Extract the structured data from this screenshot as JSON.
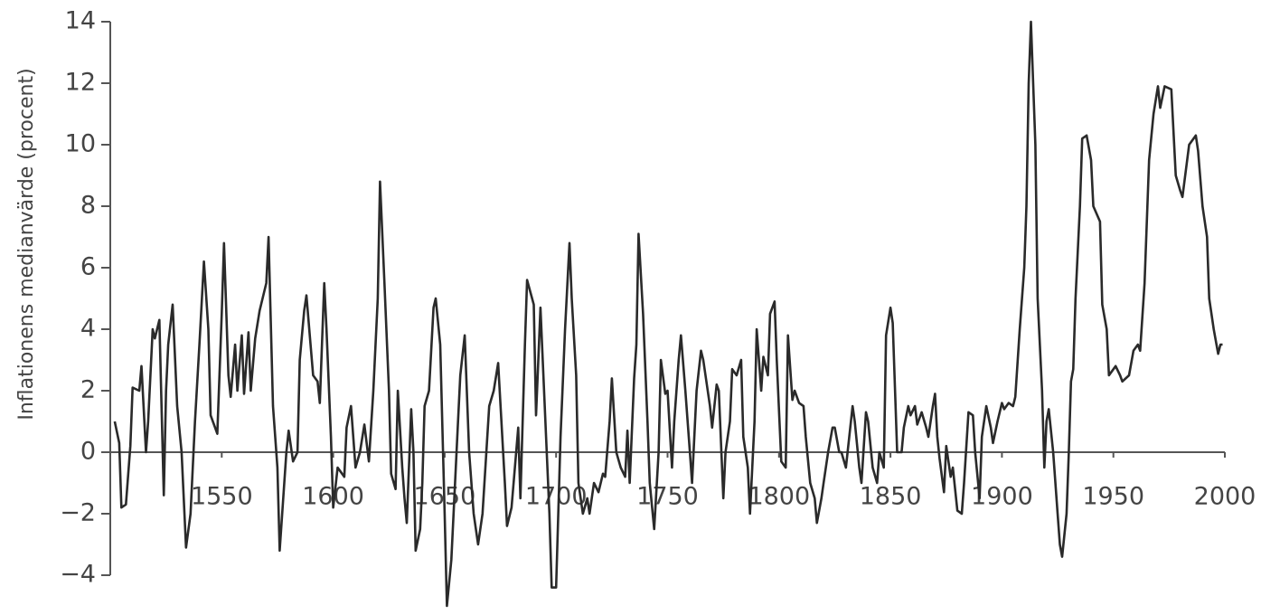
{
  "chart_data": {
    "type": "line",
    "ylabel": "Inflationens medianvärde (procent)",
    "xlim": [
      1500,
      2000
    ],
    "ylim": [
      -5,
      14
    ],
    "xticks": [
      1550,
      1600,
      1650,
      1700,
      1750,
      1800,
      1850,
      1900,
      1950,
      2000
    ],
    "yticks": [
      {
        "value": -4,
        "label": "−4"
      },
      {
        "value": -2,
        "label": "−2"
      },
      0,
      2,
      4,
      6,
      8,
      10,
      12,
      14
    ],
    "color": "#2a2a2a",
    "x": [
      1502,
      1504,
      1505,
      1507,
      1509,
      1510,
      1513,
      1514,
      1516,
      1517,
      1519,
      1520,
      1522,
      1524,
      1525,
      1526,
      1528,
      1530,
      1532,
      1534,
      1536,
      1538,
      1540,
      1542,
      1544,
      1545,
      1548,
      1550,
      1551,
      1553,
      1554,
      1556,
      1557,
      1559,
      1560,
      1562,
      1563,
      1565,
      1567,
      1570,
      1571,
      1573,
      1575,
      1576,
      1579,
      1580,
      1582,
      1584,
      1585,
      1587,
      1588,
      1591,
      1593,
      1594,
      1596,
      1597,
      1599,
      1600,
      1602,
      1605,
      1606,
      1608,
      1610,
      1612,
      1614,
      1616,
      1618,
      1620,
      1621,
      1623,
      1625,
      1626,
      1628,
      1629,
      1631,
      1632,
      1633,
      1635,
      1636,
      1637,
      1639,
      1640,
      1641,
      1643,
      1645,
      1646,
      1648,
      1650,
      1651,
      1653,
      1656,
      1657,
      1659,
      1661,
      1663,
      1665,
      1667,
      1670,
      1672,
      1674,
      1677,
      1678,
      1680,
      1683,
      1684,
      1686,
      1687,
      1690,
      1691,
      1693,
      1694,
      1697,
      1698,
      1700,
      1702,
      1704,
      1706,
      1707,
      1709,
      1710,
      1712,
      1714,
      1715,
      1717,
      1719,
      1721,
      1722,
      1724,
      1725,
      1727,
      1729,
      1731,
      1732,
      1733,
      1735,
      1736,
      1737,
      1739,
      1741,
      1742,
      1744,
      1746,
      1747,
      1749,
      1750,
      1752,
      1753,
      1755,
      1756,
      1758,
      1760,
      1761,
      1763,
      1765,
      1766,
      1769,
      1770,
      1772,
      1773,
      1775,
      1776,
      1778,
      1779,
      1781,
      1783,
      1784,
      1786,
      1787,
      1789,
      1790,
      1792,
      1793,
      1795,
      1796,
      1798,
      1799,
      1801,
      1803,
      1804,
      1806,
      1807,
      1809,
      1811,
      1812,
      1814,
      1816,
      1817,
      1819,
      1820,
      1822,
      1824,
      1825,
      1827,
      1828,
      1830,
      1833,
      1834,
      1836,
      1837,
      1839,
      1840,
      1842,
      1844,
      1845,
      1847,
      1848,
      1850,
      1851,
      1853,
      1855,
      1856,
      1858,
      1859,
      1861,
      1862,
      1864,
      1866,
      1867,
      1869,
      1870,
      1871,
      1872,
      1874,
      1875,
      1877,
      1878,
      1880,
      1882,
      1883,
      1885,
      1887,
      1888,
      1890,
      1891,
      1893,
      1895,
      1896,
      1898,
      1900,
      1901,
      1903,
      1905,
      1906,
      1908,
      1910,
      1911,
      1912,
      1913,
      1915,
      1916,
      1918,
      1919,
      1920,
      1921,
      1923,
      1925,
      1926,
      1927,
      1929,
      1930,
      1931,
      1932,
      1933,
      1935,
      1936,
      1938,
      1940,
      1941,
      1944,
      1945,
      1947,
      1948,
      1951,
      1953,
      1954,
      1957,
      1959,
      1961,
      1962,
      1964,
      1966,
      1968,
      1970,
      1971,
      1973,
      1976,
      1978,
      1980,
      1981,
      1984,
      1987,
      1988,
      1990,
      1992,
      1993,
      1995,
      1997,
      1998,
      1999
    ],
    "values": [
      1.0,
      0.3,
      -1.8,
      -1.7,
      0.2,
      2.1,
      2.0,
      2.8,
      0.0,
      1.0,
      4.0,
      3.7,
      4.3,
      -1.4,
      2.0,
      3.5,
      4.8,
      1.5,
      0.0,
      -3.1,
      -2.0,
      1.0,
      3.5,
      6.2,
      4.0,
      1.2,
      0.6,
      4.5,
      6.8,
      2.5,
      1.8,
      3.5,
      2.0,
      3.8,
      1.9,
      3.9,
      2.0,
      3.7,
      4.6,
      5.5,
      7.0,
      1.5,
      -0.5,
      -3.2,
      0.0,
      0.7,
      -0.3,
      0.0,
      3.0,
      4.6,
      5.1,
      2.5,
      2.3,
      1.6,
      5.5,
      4.0,
      0.5,
      -1.8,
      -0.5,
      -0.8,
      0.8,
      1.5,
      -0.5,
      0.0,
      0.9,
      -0.3,
      2.0,
      5.0,
      8.8,
      5.5,
      2.0,
      -0.7,
      -1.2,
      2.0,
      -0.5,
      -1.5,
      -2.3,
      1.4,
      0.0,
      -3.2,
      -2.5,
      -1.0,
      1.5,
      2.0,
      4.7,
      5.0,
      3.5,
      -2.0,
      -5.0,
      -3.5,
      1.0,
      2.5,
      3.8,
      0.0,
      -2.0,
      -3.0,
      -2.0,
      1.5,
      2.0,
      2.9,
      -1.0,
      -2.4,
      -1.8,
      0.8,
      -1.5,
      3.5,
      5.6,
      4.8,
      1.2,
      4.7,
      3.0,
      -2.0,
      -4.4,
      -4.4,
      0.5,
      4.0,
      6.8,
      5.0,
      2.5,
      -1.0,
      -2.0,
      -1.5,
      -2.0,
      -1.0,
      -1.3,
      -0.7,
      -0.8,
      1.0,
      2.4,
      0.0,
      -0.5,
      -0.8,
      0.7,
      -1.0,
      2.4,
      3.5,
      7.1,
      4.5,
      1.0,
      -1.0,
      -2.5,
      0.0,
      3.0,
      1.9,
      2.0,
      -0.5,
      1.0,
      3.0,
      3.8,
      2.0,
      0.0,
      -1.0,
      2.0,
      3.3,
      3.0,
      1.5,
      0.8,
      2.2,
      2.0,
      -1.5,
      0.0,
      1.0,
      2.7,
      2.5,
      3.0,
      0.5,
      -0.5,
      -2.0,
      1.0,
      4.0,
      2.0,
      3.1,
      2.5,
      4.5,
      4.9,
      3.0,
      -0.3,
      -0.5,
      3.8,
      1.7,
      2.0,
      1.6,
      1.5,
      0.5,
      -1.0,
      -1.5,
      -2.3,
      -1.5,
      -1.0,
      0.0,
      0.8,
      0.8,
      0.0,
      0.0,
      -0.5,
      1.5,
      1.0,
      -0.5,
      -1.0,
      1.3,
      1.0,
      -0.5,
      -1.0,
      0.0,
      -0.5,
      3.8,
      4.7,
      4.2,
      0.0,
      0.0,
      0.8,
      1.5,
      1.2,
      1.5,
      0.9,
      1.3,
      0.8,
      0.5,
      1.5,
      1.9,
      0.5,
      -0.2,
      -1.3,
      0.2,
      -0.8,
      -0.5,
      -1.9,
      -2.0,
      -1.0,
      1.3,
      1.2,
      0.0,
      -1.5,
      0.5,
      1.5,
      0.8,
      0.3,
      1.0,
      1.6,
      1.4,
      1.6,
      1.5,
      1.8,
      4.0,
      6.0,
      8.0,
      12.0,
      14.0,
      10.0,
      5.0,
      2.0,
      -0.5,
      1.0,
      1.4,
      0.0,
      -2.0,
      -3.0,
      -3.4,
      -2.0,
      0.0,
      2.3,
      2.7,
      5.0,
      8.0,
      10.2,
      10.3,
      9.5,
      8.0,
      7.5,
      4.8,
      4.0,
      2.5,
      2.8,
      2.5,
      2.3,
      2.5,
      3.3,
      3.5,
      3.3,
      5.5,
      9.5,
      11.0,
      11.9,
      11.2,
      11.9,
      11.8,
      9.0,
      8.5,
      8.3,
      10.0,
      10.3,
      9.8,
      8.0,
      7.0,
      5.0,
      4.0,
      3.2,
      3.5,
      3.5
    ]
  }
}
